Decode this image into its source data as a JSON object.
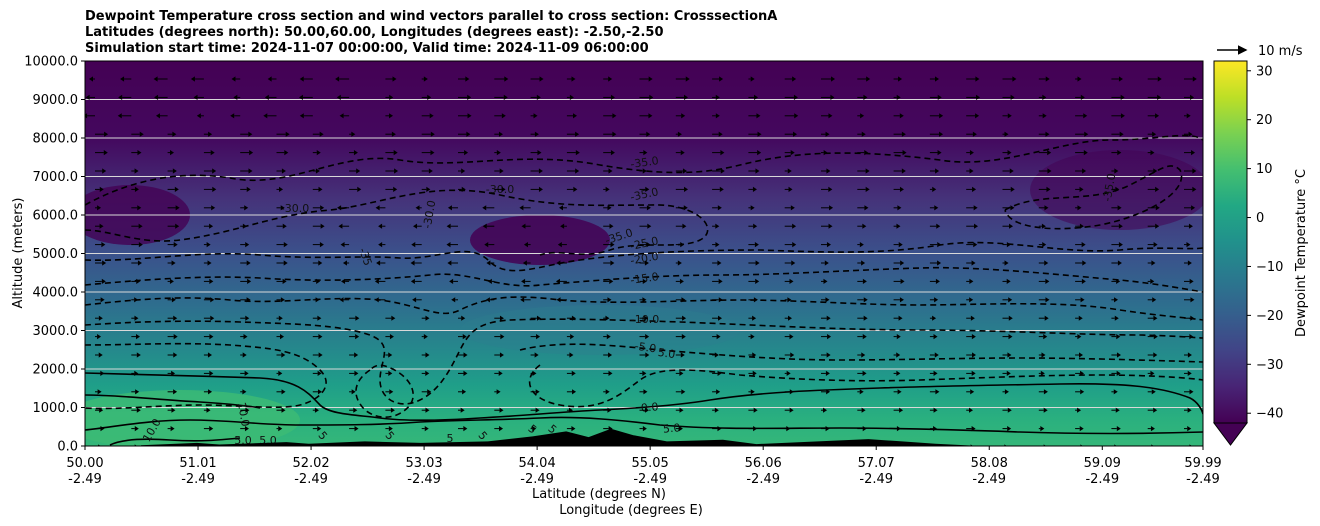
{
  "chart_data": {
    "type": "contour",
    "title_lines": [
      "Dewpoint Temperature cross section and wind vectors parallel to cross section: CrosssectionA",
      "Latitudes (degrees north): 50.00,60.00, Longitudes (degrees east): -2.50,-2.50",
      "Simulation start time: 2024-11-07 00:00:00, Valid time: 2024-11-09 06:00:00"
    ],
    "ylabel": "Altitude (meters)",
    "xlabel_lat": "Latitude (degrees N)",
    "xlabel_lon": "Longitude (degrees E)",
    "ylim": [
      0,
      10000
    ],
    "xlim": [
      50.0,
      59.99
    ],
    "y_ticks": [
      "0.0",
      "1000.0",
      "2000.0",
      "3000.0",
      "4000.0",
      "5000.0",
      "6000.0",
      "7000.0",
      "8000.0",
      "9000.0",
      "10000.0"
    ],
    "y_tick_values": [
      0,
      1000,
      2000,
      3000,
      4000,
      5000,
      6000,
      7000,
      8000,
      9000,
      10000
    ],
    "x_ticks": [
      {
        "lat": "50.00",
        "lon": "-2.49",
        "v": 50.0
      },
      {
        "lat": "51.01",
        "lon": "-2.49",
        "v": 51.01
      },
      {
        "lat": "52.02",
        "lon": "-2.49",
        "v": 52.02
      },
      {
        "lat": "53.03",
        "lon": "-2.49",
        "v": 53.03
      },
      {
        "lat": "54.04",
        "lon": "-2.49",
        "v": 54.04
      },
      {
        "lat": "55.05",
        "lon": "-2.49",
        "v": 55.05
      },
      {
        "lat": "56.06",
        "lon": "-2.49",
        "v": 56.06
      },
      {
        "lat": "57.07",
        "lon": "-2.49",
        "v": 57.07
      },
      {
        "lat": "58.08",
        "lon": "-2.49",
        "v": 58.08
      },
      {
        "lat": "59.09",
        "lon": "-2.49",
        "v": 59.09
      },
      {
        "lat": "59.99",
        "lon": "-2.49",
        "v": 59.99
      }
    ],
    "grid": "horizontal",
    "colorbar": {
      "label": "Dewpoint Temperature $^\\circ$C",
      "label_text": "Dewpoint Temperature °C",
      "ticks": [
        "30",
        "20",
        "10",
        "0",
        "−10",
        "−20",
        "−30",
        "−40"
      ],
      "tick_values": [
        30,
        20,
        10,
        0,
        -10,
        -20,
        -30,
        -40
      ],
      "range": [
        -42,
        32
      ],
      "colormap": "viridis",
      "extend": "min"
    },
    "quiver_key": {
      "label": "10 m/s",
      "value": 10
    },
    "contour_levels_labeled": [
      "-35.0",
      "-35.0",
      "-35.0",
      "-35.0",
      "-35",
      "-30.0",
      "-30.0",
      "-30.0",
      "-25.0",
      "-20.0",
      "-15.0",
      "-10.0",
      "-5.0",
      "5.0",
      "0.0",
      "5.0",
      "5.0",
      "5.0",
      "10.0",
      "10.0",
      "5",
      "5",
      "5",
      "5",
      "5",
      "5"
    ],
    "layers": [
      {
        "top": 10000,
        "bottom": 8000,
        "dewpoint": -42
      },
      {
        "top": 8000,
        "bottom": 6000,
        "dewpoint": -36
      },
      {
        "top": 6000,
        "bottom": 4800,
        "dewpoint": -30
      },
      {
        "top": 4800,
        "bottom": 3600,
        "dewpoint": -24
      },
      {
        "top": 3600,
        "bottom": 2600,
        "dewpoint": -17
      },
      {
        "top": 2600,
        "bottom": 1800,
        "dewpoint": -10
      },
      {
        "top": 1800,
        "bottom": 1000,
        "dewpoint": -3
      },
      {
        "top": 1000,
        "bottom": 0,
        "dewpoint": 4
      }
    ],
    "terrain": [
      {
        "lat": 50.5,
        "h": 20
      },
      {
        "lat": 51.0,
        "h": 80
      },
      {
        "lat": 51.2,
        "h": 40
      },
      {
        "lat": 51.8,
        "h": 100
      },
      {
        "lat": 52.0,
        "h": 60
      },
      {
        "lat": 52.5,
        "h": 120
      },
      {
        "lat": 53.0,
        "h": 80
      },
      {
        "lat": 53.6,
        "h": 120
      },
      {
        "lat": 54.0,
        "h": 250
      },
      {
        "lat": 54.3,
        "h": 380
      },
      {
        "lat": 54.5,
        "h": 230
      },
      {
        "lat": 54.7,
        "h": 450
      },
      {
        "lat": 54.9,
        "h": 280
      },
      {
        "lat": 55.2,
        "h": 120
      },
      {
        "lat": 55.7,
        "h": 160
      },
      {
        "lat": 56.0,
        "h": 50
      },
      {
        "lat": 57.0,
        "h": 180
      },
      {
        "lat": 57.3,
        "h": 120
      },
      {
        "lat": 57.6,
        "h": 60
      },
      {
        "lat": 58.0,
        "h": 0
      }
    ]
  }
}
